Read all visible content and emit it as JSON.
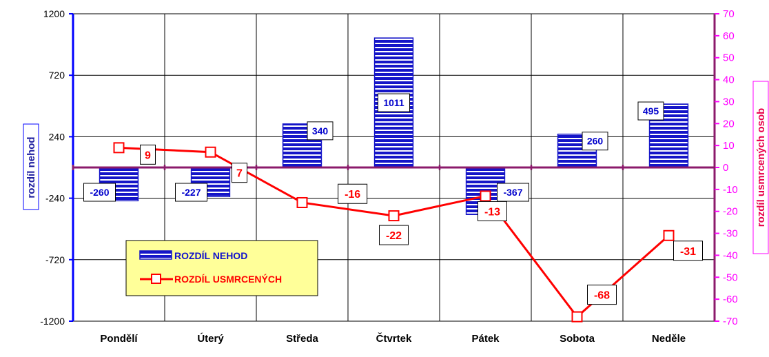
{
  "chart_data": {
    "type": "bar",
    "categories": [
      "Pondělí",
      "Úterý",
      "Středa",
      "Čtvrtek",
      "Pátek",
      "Sobota",
      "Neděle"
    ],
    "series": [
      {
        "name": "ROZDÍL NEHOD",
        "type": "bar",
        "axis": "left",
        "values": [
          -260,
          -227,
          340,
          1011,
          -367,
          260,
          495
        ],
        "labels": [
          "-260",
          "-227",
          "340",
          "1011",
          "-367",
          "260",
          "495"
        ]
      },
      {
        "name": "ROZDÍL USMRCENÝCH",
        "type": "line",
        "axis": "right",
        "values": [
          9,
          7,
          -16,
          -22,
          -13,
          -68,
          -31
        ],
        "labels": [
          "9",
          "7",
          "-16",
          "-22",
          "-13",
          "-68",
          "-31"
        ]
      }
    ],
    "ylabel": "rozdíl nehod",
    "y2label": "rozdíl usmrcených osob",
    "ylim": [
      -1200,
      1200
    ],
    "y2lim": [
      -70,
      70
    ],
    "yticks": [
      "1200",
      "720",
      "240",
      "-240",
      "-720",
      "-1200"
    ],
    "y2ticks": [
      "70",
      "60",
      "50",
      "40",
      "30",
      "20",
      "10",
      "0",
      "-10",
      "-20",
      "-30",
      "-40",
      "-50",
      "-60",
      "-70"
    ],
    "grid": true,
    "legend_position": "bottom-left",
    "colors": {
      "bar_fill": "#1515c8",
      "bar_stripe": "#ffffff",
      "line": "#ff0000",
      "left_axis": "#0000ff",
      "right_axis": "#8b1a6b",
      "right_ticks": "#ff00ff",
      "legend_bg": "#ffff99"
    }
  }
}
